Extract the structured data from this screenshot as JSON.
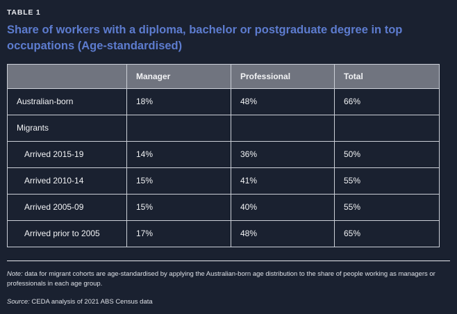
{
  "kicker": "TABLE 1",
  "title": "Share of workers with a diploma, bachelor or postgraduate degree in top occupations (Age-standardised)",
  "table": {
    "columns": [
      "",
      "Manager",
      "Professional",
      "Total"
    ],
    "rows": [
      {
        "label": "Australian-born",
        "values": [
          "18%",
          "48%",
          "66%"
        ]
      },
      {
        "label": "Migrants",
        "values": [
          "",
          "",
          ""
        ]
      },
      {
        "label": "Arrived 2015-19",
        "values": [
          "14%",
          "36%",
          "50%"
        ]
      },
      {
        "label": "Arrived 2010-14",
        "values": [
          "15%",
          "41%",
          "55%"
        ]
      },
      {
        "label": "Arrived 2005-09",
        "values": [
          "15%",
          "40%",
          "55%"
        ]
      },
      {
        "label": "Arrived prior to 2005",
        "values": [
          "17%",
          "48%",
          "65%"
        ]
      }
    ]
  },
  "note": {
    "label": "Note:",
    "text": "data for migrant cohorts are age-standardised by applying the Australian-born age distribution to the share of people working as managers or professionals in each age group."
  },
  "source": {
    "label": "Source:",
    "text": "CEDA analysis of 2021 ABS Census data"
  },
  "colors": {
    "background": "#1a2130",
    "title_blue": "#5d7ccf",
    "header_bg": "#70747f",
    "border": "#ccd0d8",
    "text": "#f2f3f5"
  },
  "chart_data": {
    "type": "table",
    "title": "Share of workers with a diploma, bachelor or postgraduate degree in top occupations (Age-standardised)",
    "columns": [
      "Manager",
      "Professional",
      "Total"
    ],
    "rows": [
      {
        "label": "Australian-born",
        "values": [
          18,
          48,
          66
        ]
      },
      {
        "label": "Migrants",
        "values": [
          null,
          null,
          null
        ]
      },
      {
        "label": "Arrived 2015-19",
        "values": [
          14,
          36,
          50
        ]
      },
      {
        "label": "Arrived 2010-14",
        "values": [
          15,
          41,
          55
        ]
      },
      {
        "label": "Arrived 2005-09",
        "values": [
          15,
          40,
          55
        ]
      },
      {
        "label": "Arrived prior to 2005",
        "values": [
          17,
          48,
          65
        ]
      }
    ],
    "units": "percent",
    "note": "data for migrant cohorts are age-standardised by applying the Australian-born age distribution to the share of people working as managers or professionals in each age group.",
    "source": "CEDA analysis of 2021 ABS Census data"
  }
}
